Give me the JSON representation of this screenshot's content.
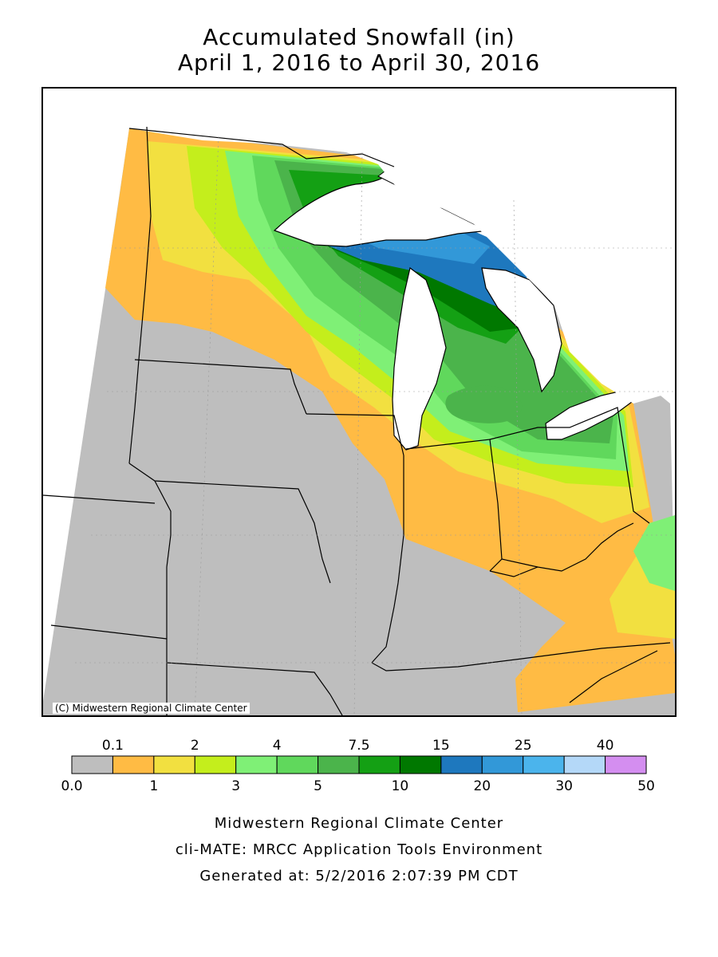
{
  "title": {
    "line1": "Accumulated Snowfall (in)",
    "line2": "April 1, 2016 to April 30, 2016"
  },
  "map": {
    "copyright": "(C) Midwestern Regional Climate Center"
  },
  "legend": {
    "upper_labels": [
      "0.1",
      "2",
      "4",
      "7.5",
      "15",
      "25",
      "40"
    ],
    "lower_labels": [
      "0.0",
      "1",
      "3",
      "5",
      "10",
      "20",
      "30",
      "50"
    ],
    "colors": [
      "#bebebe",
      "#ffbb44",
      "#f2e040",
      "#c4ee1c",
      "#7ff076",
      "#60d85c",
      "#4bb44b",
      "#14a014",
      "#007800",
      "#1e78be",
      "#3298d8",
      "#4bb4ec",
      "#b4d8f8",
      "#d48ef0"
    ],
    "upper_after_box": [
      0,
      2,
      4,
      6,
      8,
      10,
      12
    ],
    "lower_after_box": [
      -1,
      1,
      3,
      5,
      7,
      9,
      11,
      13
    ]
  },
  "footer": {
    "line1": "Midwestern Regional Climate Center",
    "line2": "cli-MATE: MRCC Application Tools Environment",
    "line3": "Generated at: 5/2/2016 2:07:39 PM CDT"
  }
}
